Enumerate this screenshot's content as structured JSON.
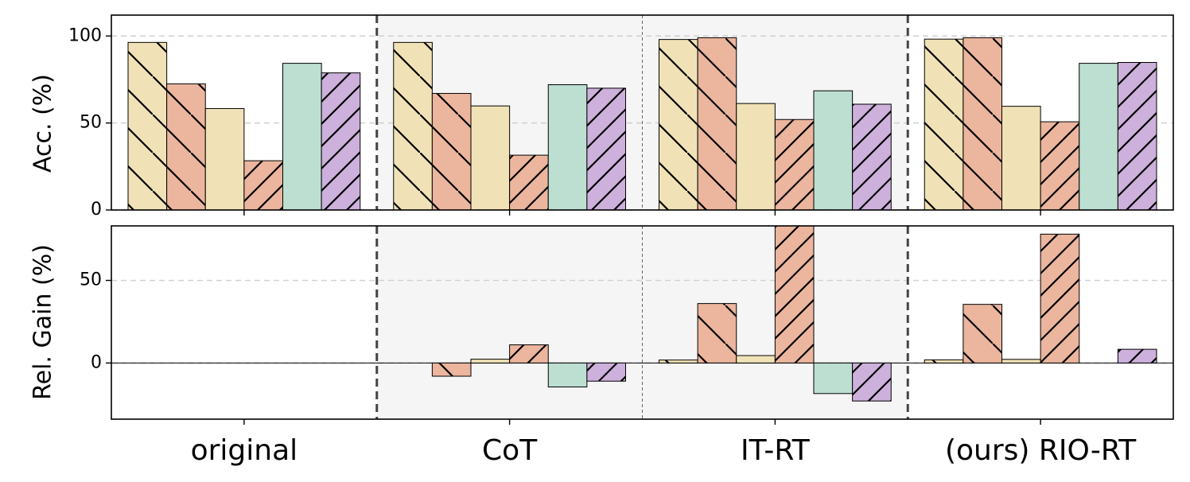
{
  "chart_data": [
    {
      "type": "bar",
      "panel": "top",
      "ylabel": "Acc. (%)",
      "ylim": [
        0,
        112
      ],
      "yticks": [
        0,
        50,
        100
      ],
      "grid": "dashed horizontal",
      "categories": [
        "original",
        "CoT",
        "IT-RT",
        "(ours) RIO-RT"
      ],
      "series": [
        {
          "values": [
            96.3,
            96.3,
            98.0,
            98.2
          ],
          "color": "#f0e2b6",
          "hatch": "backslash"
        },
        {
          "values": [
            72.5,
            67.0,
            99.0,
            99.0
          ],
          "color": "#ebb59e",
          "hatch": "backslash"
        },
        {
          "values": [
            58.3,
            59.8,
            61.2,
            59.6
          ],
          "color": "#f0e2b6",
          "hatch": "none"
        },
        {
          "values": [
            28.3,
            31.5,
            52.0,
            50.7
          ],
          "color": "#ebb59e",
          "hatch": "slash"
        },
        {
          "values": [
            84.3,
            72.0,
            68.5,
            84.3
          ],
          "color": "#bcdfd1",
          "hatch": "none"
        },
        {
          "values": [
            78.8,
            70.0,
            60.8,
            84.8
          ],
          "color": "#cdb0db",
          "hatch": "slash"
        }
      ]
    },
    {
      "type": "bar",
      "panel": "bottom",
      "ylabel": "Rel. Gain (%)",
      "ylim": [
        -34,
        83
      ],
      "yticks": [
        0,
        50
      ],
      "grid": "dashed horizontal",
      "categories": [
        "original",
        "CoT",
        "IT-RT",
        "(ours) RIO-RT"
      ],
      "series": [
        {
          "values": [
            0,
            0.0,
            1.8,
            1.9
          ],
          "color": "#f0e2b6",
          "hatch": "backslash"
        },
        {
          "values": [
            0,
            -8.0,
            36.0,
            35.5
          ],
          "color": "#ebb59e",
          "hatch": "backslash"
        },
        {
          "values": [
            0,
            2.3,
            4.5,
            2.2
          ],
          "color": "#f0e2b6",
          "hatch": "none"
        },
        {
          "values": [
            0,
            11.0,
            83.0,
            78.0
          ],
          "color": "#ebb59e",
          "hatch": "slash"
        },
        {
          "values": [
            0,
            -14.5,
            -18.5,
            0.0
          ],
          "color": "#bcdfd1",
          "hatch": "none"
        },
        {
          "values": [
            0,
            -11.0,
            -23.0,
            8.3
          ],
          "color": "#cdb0db",
          "hatch": "slash"
        }
      ]
    }
  ]
}
